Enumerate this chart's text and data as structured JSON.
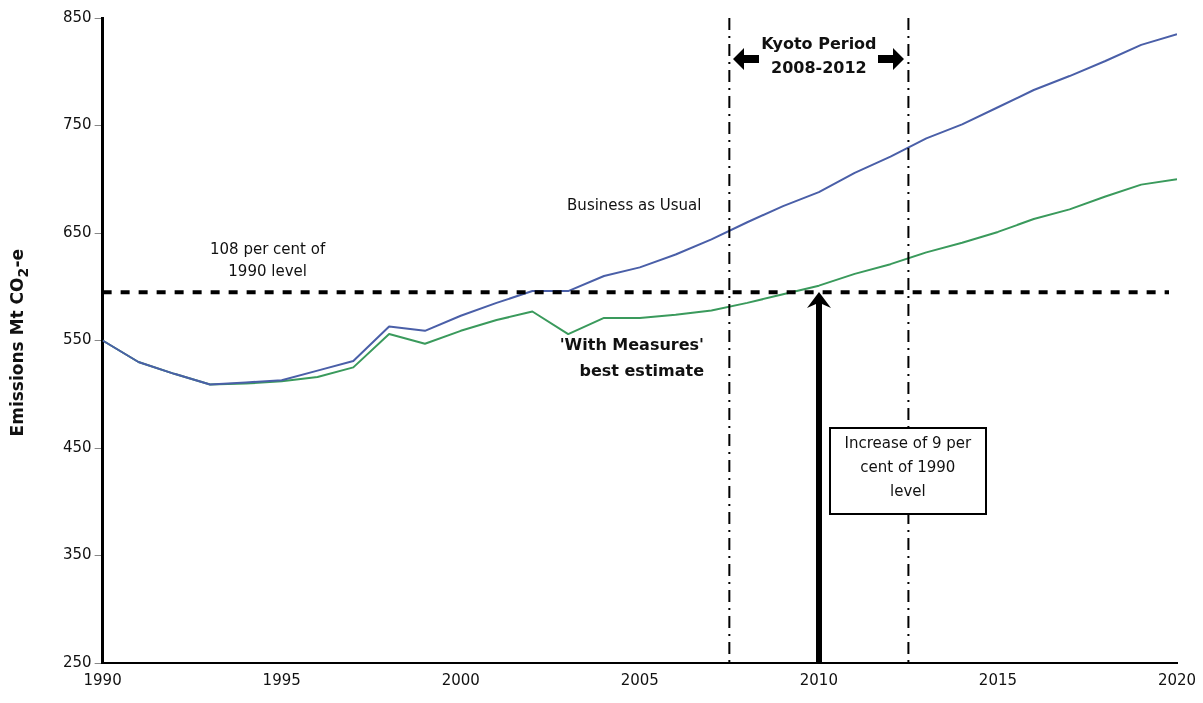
{
  "chart_data": {
    "type": "line",
    "ylabel": "Emissions Mt CO$_{2}$-e",
    "x": [
      1990,
      1991,
      1992,
      1993,
      1994,
      1995,
      1996,
      1997,
      1998,
      1999,
      2000,
      2001,
      2002,
      2003,
      2004,
      2005,
      2006,
      2007,
      2008,
      2009,
      2010,
      2011,
      2012,
      2013,
      2014,
      2015,
      2016,
      2017,
      2018,
      2019,
      2020
    ],
    "series": [
      {
        "name": "Business as Usual",
        "color": "#4a5fa8",
        "values": [
          550,
          530,
          519,
          509,
          511,
          513,
          522,
          531,
          563,
          559,
          573,
          585,
          596,
          596,
          610,
          618,
          630,
          644,
          660,
          675,
          688,
          706,
          721,
          738,
          751,
          767,
          783,
          796,
          810,
          825,
          835
        ]
      },
      {
        "name": "'With Measures' best estimate",
        "color": "#3a9a5c",
        "values": [
          550,
          530,
          519,
          509,
          510,
          512,
          516,
          525,
          556,
          547,
          559,
          569,
          577,
          556,
          571,
          571,
          574,
          578,
          585,
          593,
          601,
          612,
          621,
          632,
          641,
          651,
          663,
          672,
          684,
          695,
          700
        ]
      }
    ],
    "xlim": [
      1990,
      2020
    ],
    "xticks": [
      1990,
      1995,
      2000,
      2005,
      2010,
      2015,
      2020
    ],
    "ylim": [
      250,
      850
    ],
    "yticks": [
      250,
      350,
      450,
      550,
      650,
      750,
      850
    ],
    "grid": false,
    "legend": false,
    "marker": "none",
    "line_style": "solid",
    "ref_lines": [
      {
        "axis": "y",
        "value": 595,
        "label": "108 per cent of 1990 level",
        "color": "#000000",
        "line_style": "dashed"
      },
      {
        "axis": "x",
        "value": 2007.5,
        "color": "#000000",
        "line_style": "dashed"
      },
      {
        "axis": "x",
        "value": 2012.5,
        "color": "#000000",
        "line_style": "dashed"
      }
    ],
    "annotations": [
      "Kyoto Period 2008-2012",
      "Increase of 9 per cent of 1990 level"
    ]
  }
}
